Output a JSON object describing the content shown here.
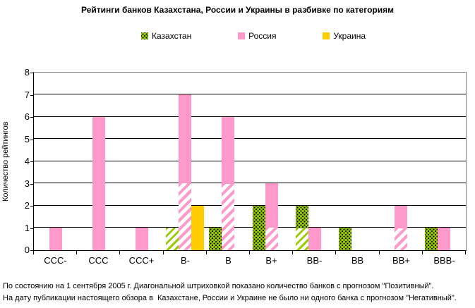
{
  "title": "Рейтинги банков Казахстана, России и Украины в разбивке по категориям",
  "legend": [
    {
      "label": "Казахстан",
      "color": "#99CC00",
      "pattern": "black-dots"
    },
    {
      "label": "Россия",
      "color": "#FF99CC",
      "pattern": "solid"
    },
    {
      "label": "Украина",
      "color": "#FFCC00",
      "pattern": "solid"
    }
  ],
  "y_axis": {
    "label": "Количество рейтингов",
    "min": 0,
    "max": 8,
    "step": 1
  },
  "footnotes": {
    "line1": "По состоянию на 1 сентября 2005 г. Диагональной штриховкой показано количество банков с прогнозом \"Позитивный\".",
    "line2": "На дату публикации настоящего обзора в  Казахстане, России и Украине не было ни одного банка с прогнозом \"Негативный\"."
  },
  "colors": {
    "kazakhstan": "#99CC00",
    "russia": "#FF99CC",
    "ukraine": "#FFCC00",
    "gridline": "#000000",
    "plot_border": "#808080",
    "text": "#000000"
  },
  "chart_data": {
    "type": "bar",
    "title": "Рейтинги банков Казахстана, России и Украины в разбивке по категориям",
    "xlabel": "",
    "ylabel": "Количество рейтингов",
    "ylim": [
      0,
      8
    ],
    "ytick_step": 1,
    "grid": true,
    "legend_position": "top",
    "categories": [
      "CCC-",
      "CCC",
      "CCC+",
      "B-",
      "B",
      "B+",
      "BB-",
      "BB",
      "BB+",
      "BBB-"
    ],
    "series": [
      {
        "name": "Казахстан",
        "color": "#99CC00",
        "pattern": "black-dots",
        "values": [
          0,
          0,
          0,
          1,
          1,
          2,
          2,
          1,
          0,
          1
        ],
        "hatched_positive_outlook": [
          0,
          0,
          0,
          1,
          0,
          0,
          1,
          0,
          0,
          0
        ]
      },
      {
        "name": "Россия",
        "color": "#FF99CC",
        "pattern": "solid",
        "values": [
          1,
          6,
          1,
          7,
          6,
          3,
          1,
          0,
          2,
          1
        ],
        "hatched_positive_outlook": [
          0,
          0,
          0,
          3,
          3,
          1,
          0,
          0,
          1,
          0
        ]
      },
      {
        "name": "Украина",
        "color": "#FFCC00",
        "pattern": "solid",
        "values": [
          0,
          0,
          0,
          2,
          0,
          0,
          0,
          0,
          0,
          0
        ],
        "hatched_positive_outlook": [
          0,
          0,
          0,
          0,
          0,
          0,
          0,
          0,
          0,
          0
        ]
      }
    ],
    "hatch_note": "Диагональной штриховкой показано количество банков с прогнозом \"Позитивный\""
  }
}
